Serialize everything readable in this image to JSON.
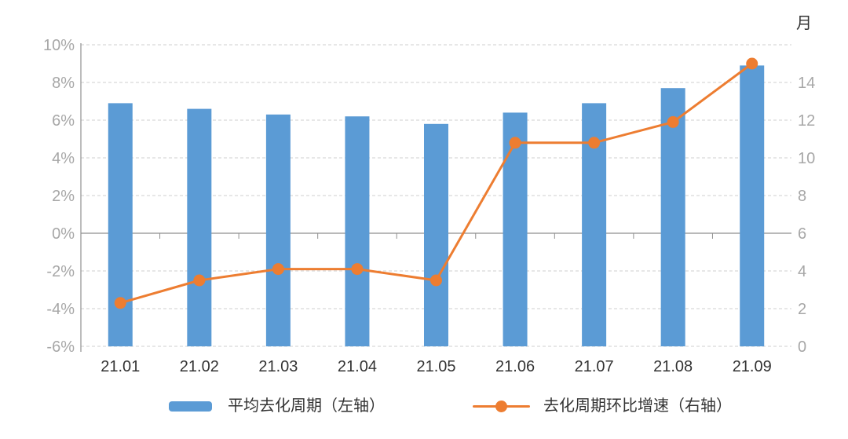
{
  "chart_data": {
    "type": "combo",
    "title": "",
    "categories": [
      "21.01",
      "21.02",
      "21.03",
      "21.04",
      "21.05",
      "21.06",
      "21.07",
      "21.08",
      "21.09"
    ],
    "series": [
      {
        "name": "平均去化周期（左轴）",
        "type": "bar",
        "plotted_axis": "right",
        "unit": "月",
        "values": [
          12.9,
          12.6,
          12.3,
          12.2,
          11.8,
          12.4,
          12.9,
          13.7,
          14.9
        ],
        "color": "#5B9BD5"
      },
      {
        "name": "去化周期环比增速（右轴）",
        "type": "line",
        "plotted_axis": "left",
        "unit": "%",
        "values": [
          -3.7,
          -2.5,
          -1.9,
          -1.9,
          -2.5,
          4.8,
          4.8,
          5.9,
          9.0
        ],
        "color": "#ED7D31"
      }
    ],
    "left_axis": {
      "tick_labels": [
        "10%",
        "8%",
        "6%",
        "4%",
        "2%",
        "0%",
        "-2%",
        "-4%",
        "-6%"
      ],
      "tick_values": [
        10,
        8,
        6,
        4,
        2,
        0,
        -2,
        -4,
        -6
      ],
      "min": -6,
      "max": 10
    },
    "right_axis": {
      "unit": "月",
      "tick_labels": [
        "14",
        "12",
        "10",
        "8",
        "6",
        "4",
        "2",
        "0"
      ],
      "tick_values": [
        14,
        12,
        10,
        8,
        6,
        4,
        2,
        0
      ],
      "min": 0,
      "max": 16
    },
    "grid": true,
    "gridline_style": "dashed",
    "zero_line": "solid",
    "legend_position": "bottom",
    "colors": {
      "bar": "#5B9BD5",
      "line": "#ED7D31",
      "axis_tick_label": "#A7A7A7",
      "category_label": "#333333",
      "legend_text": "#333333",
      "gridline": "#CFCFCF",
      "axis_line": "#8F8F8F",
      "background": "#FFFFFF"
    }
  }
}
